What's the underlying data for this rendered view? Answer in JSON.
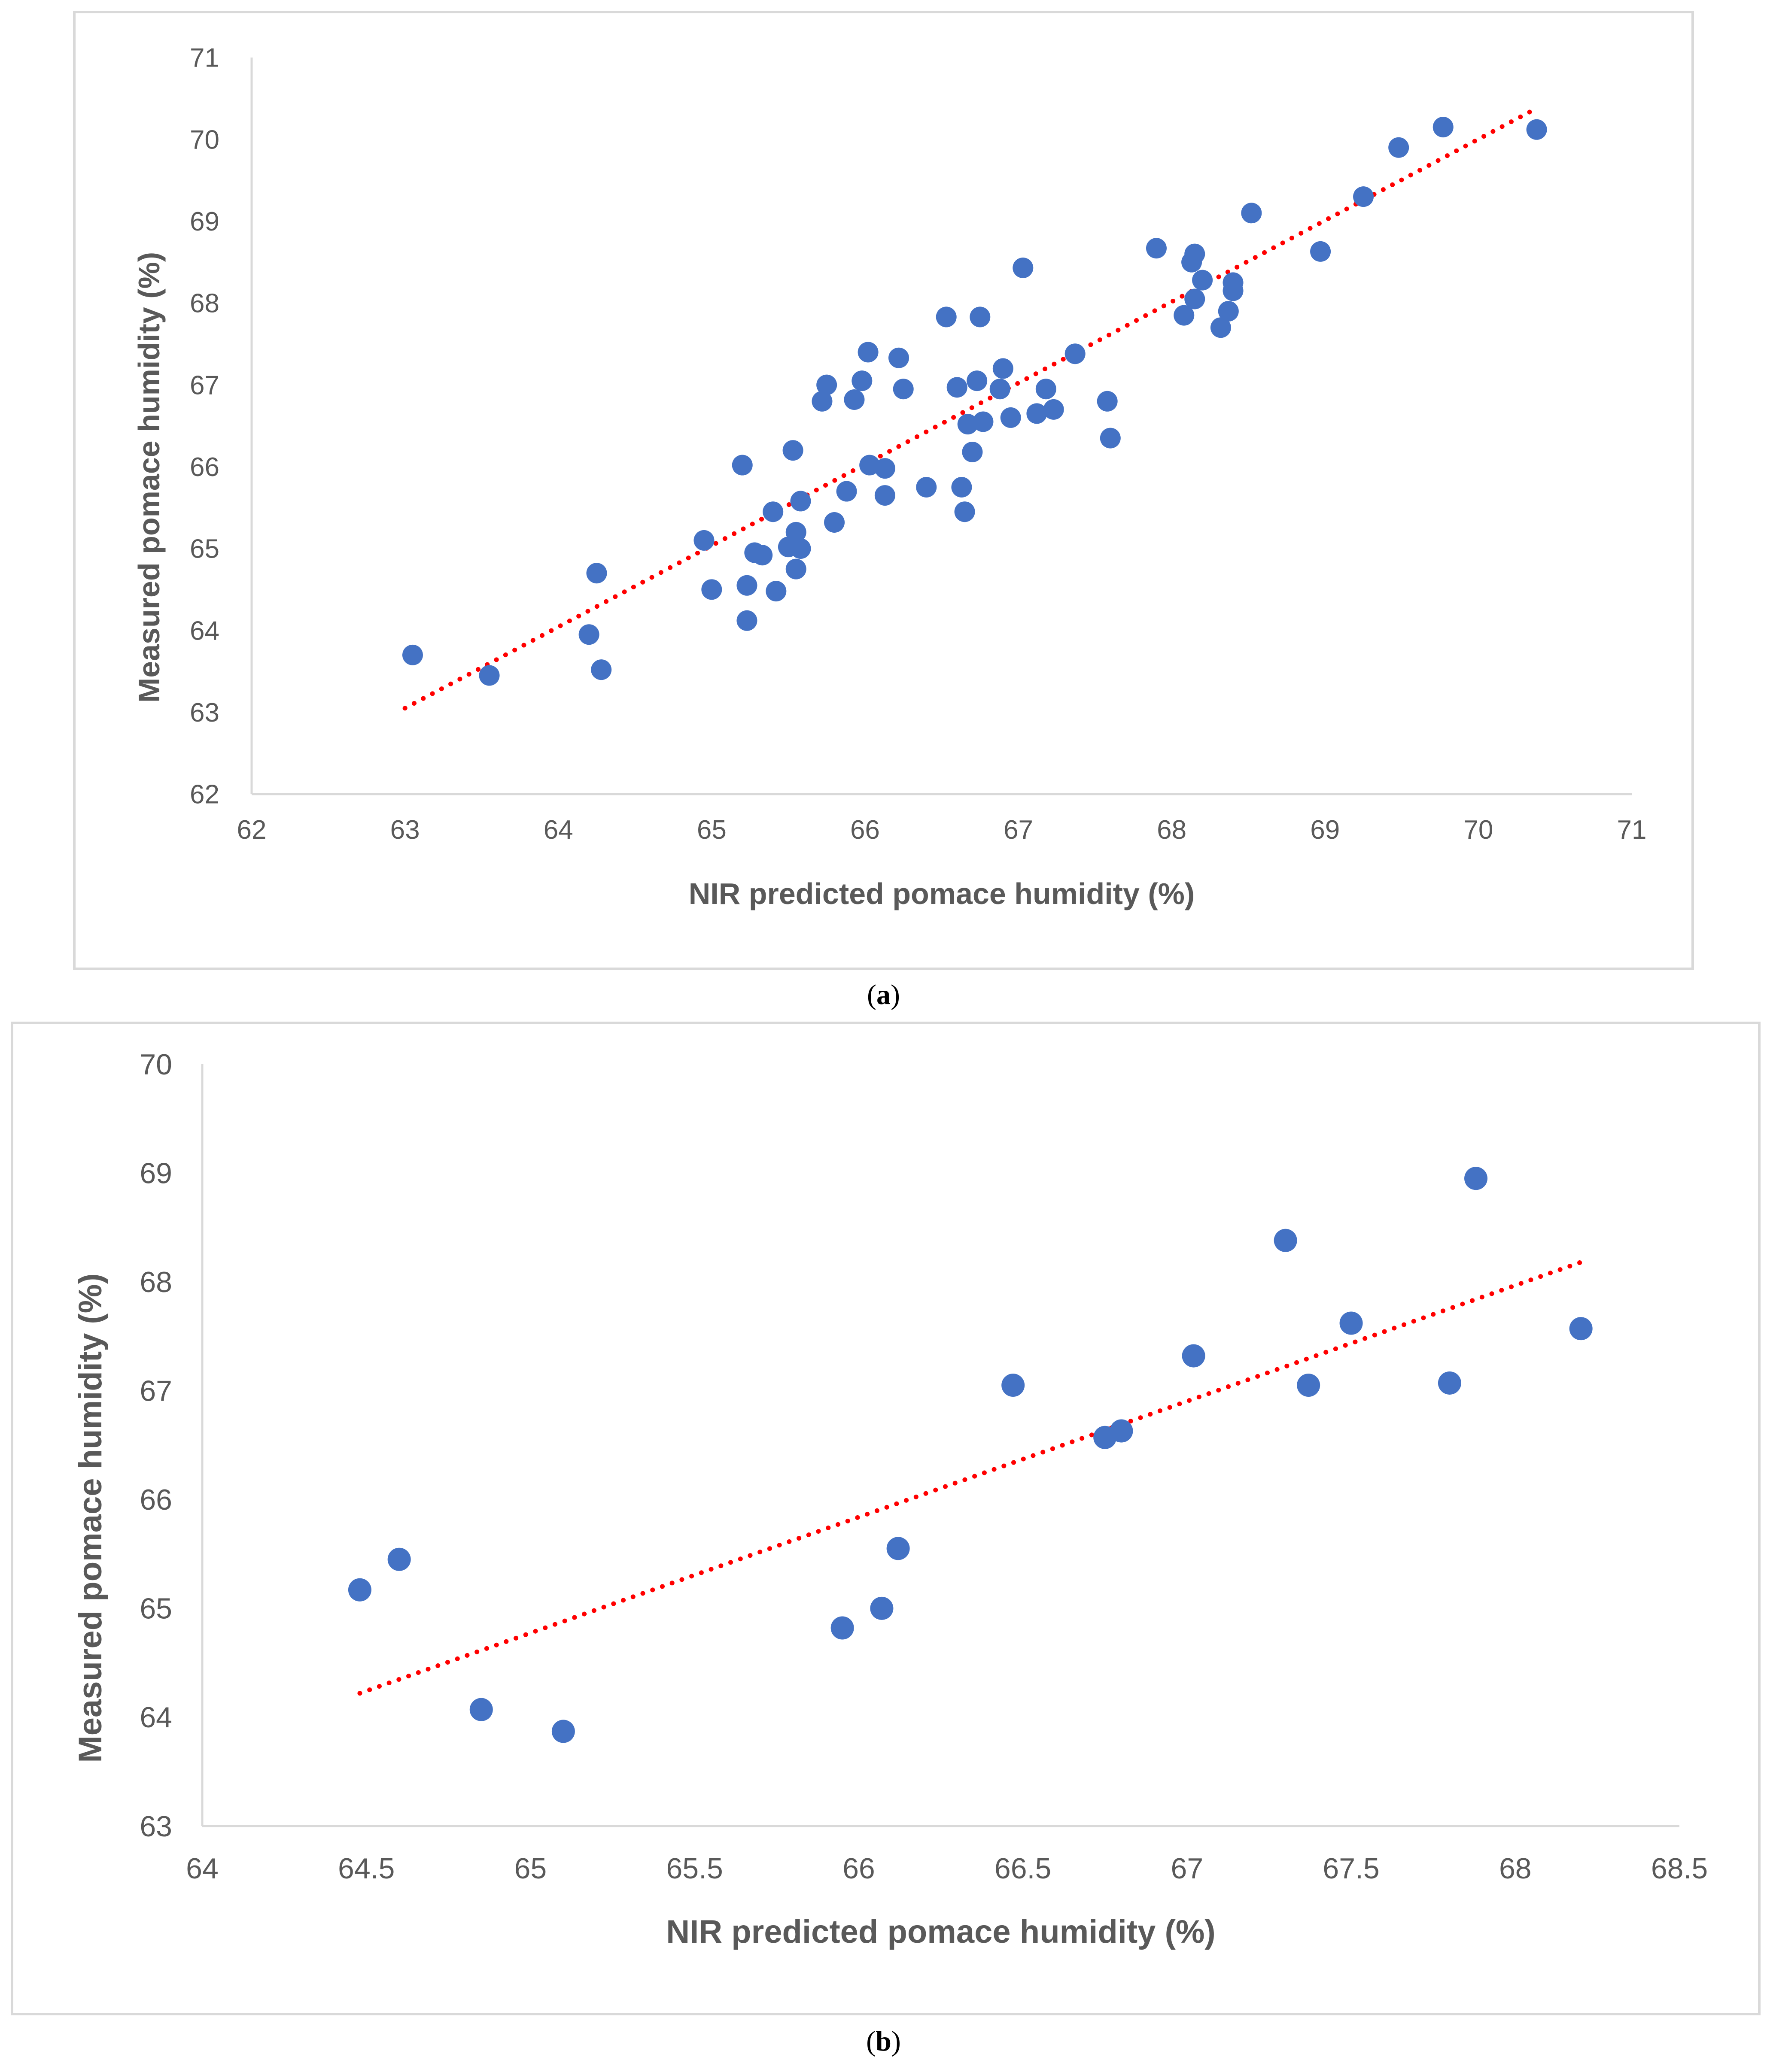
{
  "chart_data": [
    {
      "type": "scatter",
      "xlabel": "NIR predicted pomace humidity (%)",
      "ylabel": "Measured pomace humidity (%)",
      "xlim": [
        62,
        71
      ],
      "ylim": [
        62,
        71
      ],
      "xticks": [
        "62",
        "63",
        "64",
        "65",
        "66",
        "67",
        "68",
        "69",
        "70",
        "71"
      ],
      "yticks": [
        "62",
        "63",
        "64",
        "65",
        "66",
        "67",
        "68",
        "69",
        "70",
        "71"
      ],
      "grid": false,
      "legend": "none",
      "marker_color": "#4472C4",
      "trendline": {
        "style": "dotted",
        "color": "#FF0000",
        "x": [
          63.0,
          70.35
        ],
        "y": [
          63.05,
          70.35
        ]
      },
      "points": [
        [
          63.05,
          63.7
        ],
        [
          63.55,
          63.45
        ],
        [
          64.2,
          63.95
        ],
        [
          64.25,
          64.7
        ],
        [
          64.28,
          63.52
        ],
        [
          64.95,
          65.1
        ],
        [
          65.0,
          64.5
        ],
        [
          65.2,
          66.02
        ],
        [
          65.23,
          64.55
        ],
        [
          65.23,
          64.12
        ],
        [
          65.28,
          64.95
        ],
        [
          65.33,
          64.92
        ],
        [
          65.4,
          65.45
        ],
        [
          65.42,
          64.48
        ],
        [
          65.5,
          65.02
        ],
        [
          65.53,
          66.2
        ],
        [
          65.55,
          65.2
        ],
        [
          65.55,
          64.75
        ],
        [
          65.58,
          65.0
        ],
        [
          65.58,
          65.58
        ],
        [
          65.72,
          66.8
        ],
        [
          65.75,
          67.0
        ],
        [
          65.8,
          65.32
        ],
        [
          65.88,
          65.7
        ],
        [
          65.93,
          66.82
        ],
        [
          65.98,
          67.05
        ],
        [
          66.02,
          67.4
        ],
        [
          66.03,
          66.02
        ],
        [
          66.13,
          65.98
        ],
        [
          66.13,
          65.65
        ],
        [
          66.22,
          67.33
        ],
        [
          66.25,
          66.95
        ],
        [
          66.4,
          65.75
        ],
        [
          66.53,
          67.83
        ],
        [
          66.6,
          66.97
        ],
        [
          66.63,
          65.75
        ],
        [
          66.65,
          65.45
        ],
        [
          66.67,
          66.52
        ],
        [
          66.7,
          66.18
        ],
        [
          66.73,
          67.05
        ],
        [
          66.75,
          67.83
        ],
        [
          66.77,
          66.55
        ],
        [
          66.88,
          66.95
        ],
        [
          66.9,
          67.2
        ],
        [
          66.95,
          66.6
        ],
        [
          67.03,
          68.43
        ],
        [
          67.12,
          66.65
        ],
        [
          67.18,
          66.95
        ],
        [
          67.23,
          66.7
        ],
        [
          67.37,
          67.38
        ],
        [
          67.58,
          66.8
        ],
        [
          67.6,
          66.35
        ],
        [
          67.9,
          68.67
        ],
        [
          68.08,
          67.85
        ],
        [
          68.13,
          68.5
        ],
        [
          68.15,
          68.6
        ],
        [
          68.15,
          68.05
        ],
        [
          68.2,
          68.28
        ],
        [
          68.32,
          67.7
        ],
        [
          68.37,
          67.9
        ],
        [
          68.4,
          68.15
        ],
        [
          68.4,
          68.25
        ],
        [
          68.52,
          69.1
        ],
        [
          68.97,
          68.63
        ],
        [
          69.25,
          69.3
        ],
        [
          69.48,
          69.9
        ],
        [
          69.77,
          70.15
        ],
        [
          70.38,
          70.12
        ]
      ]
    },
    {
      "type": "scatter",
      "xlabel": "NIR predicted pomace humidity (%)",
      "ylabel": "Measured pomace humidity (%)",
      "xlim": [
        64,
        68.5
      ],
      "ylim": [
        63,
        70
      ],
      "xticks": [
        "64",
        "64.5",
        "65",
        "65.5",
        "66",
        "66.5",
        "67",
        "67.5",
        "68",
        "68.5"
      ],
      "yticks": [
        "63",
        "64",
        "65",
        "66",
        "67",
        "68",
        "69",
        "70"
      ],
      "grid": false,
      "legend": "none",
      "marker_color": "#4472C4",
      "trendline": {
        "style": "dotted",
        "color": "#FF0000",
        "x": [
          64.48,
          68.2
        ],
        "y": [
          64.22,
          68.18
        ]
      },
      "points": [
        [
          64.48,
          65.17
        ],
        [
          64.6,
          65.45
        ],
        [
          64.85,
          64.07
        ],
        [
          65.1,
          63.87
        ],
        [
          65.95,
          64.82
        ],
        [
          66.07,
          65.0
        ],
        [
          66.12,
          65.55
        ],
        [
          66.47,
          67.05
        ],
        [
          66.75,
          66.57
        ],
        [
          66.8,
          66.63
        ],
        [
          67.02,
          67.32
        ],
        [
          67.3,
          68.38
        ],
        [
          67.37,
          67.05
        ],
        [
          67.5,
          67.62
        ],
        [
          67.8,
          67.07
        ],
        [
          67.88,
          68.95
        ],
        [
          68.2,
          67.57
        ]
      ]
    }
  ],
  "captions": {
    "a_open": "(",
    "a_letter": "a",
    "a_close": ")",
    "b_open": "(",
    "b_letter": "b",
    "b_close": ")"
  }
}
